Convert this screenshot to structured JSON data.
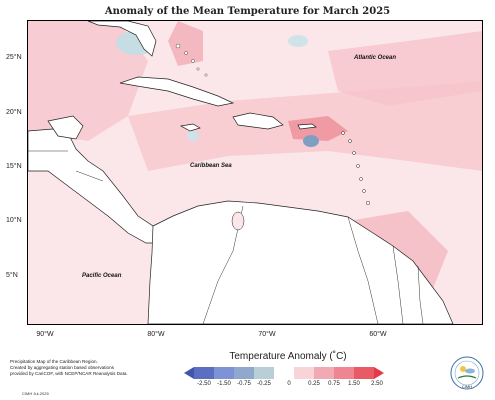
{
  "title": "Anomaly of the Mean Temperature for March 2025",
  "lat_labels": [
    "25°N",
    "20°N",
    "15°N",
    "10°N",
    "5°N"
  ],
  "lon_labels": [
    "90°W",
    "80°W",
    "70°W",
    "60°W"
  ],
  "oceans": {
    "atlantic": "Atlantic Ocean",
    "caribbean": "Caribbean Sea",
    "pacific": "Pacific Ocean"
  },
  "legend": {
    "title": "Temperature Anomaly (˚C)",
    "ticks": [
      "-2.50",
      "-1.50",
      "-0.75",
      "-0.25",
      "0",
      "0.25",
      "0.75",
      "1.50",
      "2.50"
    ],
    "colors": [
      "#4f63b8",
      "#7e93d6",
      "#9bb0d0",
      "#b8cfd6",
      "#ffffff",
      "#f8d3d8",
      "#f1aab4",
      "#ee8591",
      "#e95a67"
    ]
  },
  "notes": {
    "line1": "Precipitation Map of the Caribbean Region.",
    "line2": "Created by aggregating station based observations",
    "line3": "provided by CariCOF, with NCEP/NCAR Reanalysis Data.",
    "credit": "CIMH Jul-2025"
  },
  "logo_text": "CIMH"
}
